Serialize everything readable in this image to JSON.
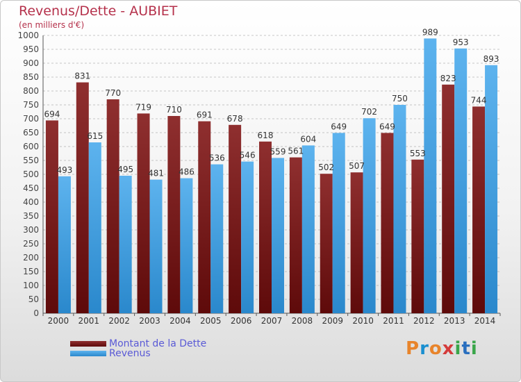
{
  "title": "Revenus/Dette - AUBIET",
  "subtitle": "(en milliers d'€)",
  "logo": {
    "letters": [
      "P",
      "r",
      "o",
      "x",
      "i",
      "t",
      "i"
    ],
    "colors": [
      "#e8842b",
      "#1a8fd0",
      "#e8842b",
      "#d43b3b",
      "#3aa64a",
      "#2a6fbf",
      "#3aa64a"
    ]
  },
  "colors": {
    "dette": "#7a1c1c",
    "revenus": "#3d9de0",
    "grid": "#8f8f8f"
  },
  "chart_data": {
    "type": "bar",
    "title": "Revenus/Dette - AUBIET",
    "subtitle": "(en milliers d'€)",
    "categories": [
      "2000",
      "2001",
      "2002",
      "2003",
      "2004",
      "2005",
      "2006",
      "2007",
      "2008",
      "2009",
      "2010",
      "2011",
      "2012",
      "2013",
      "2014"
    ],
    "series": [
      {
        "name": "Montant de la Dette",
        "values": [
          694,
          831,
          770,
          719,
          710,
          691,
          678,
          618,
          561,
          502,
          507,
          649,
          553,
          823,
          744
        ]
      },
      {
        "name": "Revenus",
        "values": [
          493,
          615,
          495,
          481,
          486,
          536,
          546,
          559,
          604,
          649,
          702,
          750,
          989,
          953,
          893
        ]
      }
    ],
    "ylim": [
      0,
      1000
    ],
    "yticks": [
      0,
      50,
      100,
      150,
      200,
      250,
      300,
      350,
      400,
      450,
      500,
      550,
      600,
      650,
      700,
      750,
      800,
      850,
      900,
      950,
      1000
    ],
    "grid": true,
    "legend_position": "bottom-left"
  }
}
